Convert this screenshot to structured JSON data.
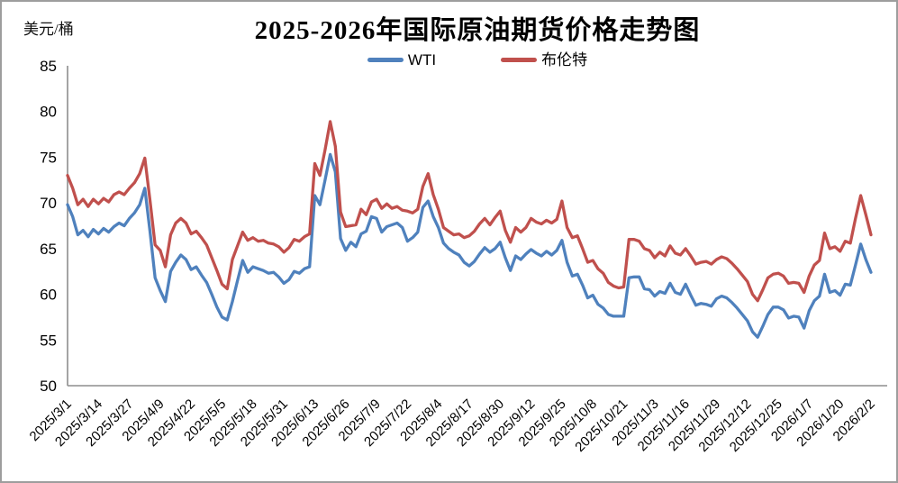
{
  "header": {
    "title": "2025-2026年国际原油期货价格走势图",
    "unit_label": "美元/桶"
  },
  "legend": [
    {
      "label": "WTI",
      "color": "#4F81BD"
    },
    {
      "label": "布伦特",
      "color": "#C0504D"
    }
  ],
  "chart_data": {
    "type": "line",
    "title": "2025-2026年国际原油期货价格走势图",
    "xlabel": "",
    "ylabel": "美元/桶",
    "ylim": [
      50,
      85
    ],
    "yticks": [
      50,
      55,
      60,
      65,
      70,
      75,
      80,
      85
    ],
    "grid": false,
    "legend_position": "top-center",
    "axis_color": "#8e8e8e",
    "x_tick_labels": [
      "2025/3/1",
      "2025/3/14",
      "2025/3/27",
      "2025/4/9",
      "2025/4/22",
      "2025/5/5",
      "2025/5/18",
      "2025/5/31",
      "2025/6/13",
      "2025/6/26",
      "2025/7/9",
      "2025/7/22",
      "2025/8/4",
      "2025/8/17",
      "2025/8/30",
      "2025/9/12",
      "2025/9/25",
      "2025/10/8",
      "2025/10/21",
      "2025/11/3",
      "2025/11/16",
      "2025/11/29",
      "2025/12/12",
      "2025/12/25",
      "2026/1/7",
      "2026/1/20",
      "2026/2/2"
    ],
    "points_per_tick_interval": 6,
    "series": [
      {
        "name": "WTI",
        "color": "#4F81BD",
        "values": [
          69.8,
          68.5,
          66.5,
          67.0,
          66.3,
          67.1,
          66.6,
          67.2,
          66.8,
          67.4,
          67.8,
          67.5,
          68.3,
          68.9,
          69.8,
          71.6,
          66.9,
          61.8,
          60.4,
          59.2,
          62.5,
          63.5,
          64.3,
          63.8,
          62.7,
          63.0,
          62.1,
          61.3,
          60.0,
          58.6,
          57.5,
          57.2,
          59.2,
          61.5,
          63.7,
          62.4,
          63.0,
          62.8,
          62.6,
          62.3,
          62.4,
          61.9,
          61.2,
          61.6,
          62.5,
          62.3,
          62.8,
          63.0,
          70.8,
          69.8,
          72.5,
          75.3,
          73.4,
          66.1,
          64.8,
          65.7,
          65.2,
          66.6,
          66.9,
          68.5,
          68.3,
          66.8,
          67.4,
          67.6,
          67.8,
          67.3,
          65.8,
          66.2,
          66.8,
          69.5,
          70.2,
          68.5,
          67.3,
          65.6,
          65.0,
          64.6,
          64.3,
          63.5,
          63.1,
          63.6,
          64.4,
          65.1,
          64.6,
          65.0,
          65.7,
          64.0,
          62.6,
          64.2,
          63.8,
          64.4,
          64.9,
          64.5,
          64.2,
          64.7,
          64.3,
          64.8,
          65.9,
          63.5,
          62.0,
          62.2,
          61.0,
          59.6,
          59.9,
          58.9,
          58.5,
          57.8,
          57.6,
          57.6,
          57.6,
          61.8,
          61.9,
          61.9,
          60.6,
          60.5,
          59.8,
          60.3,
          60.1,
          61.2,
          60.2,
          60.0,
          61.1,
          59.9,
          58.8,
          59.0,
          58.9,
          58.7,
          59.5,
          59.8,
          59.6,
          59.1,
          58.5,
          57.8,
          57.1,
          55.9,
          55.3,
          56.5,
          57.8,
          58.6,
          58.6,
          58.3,
          57.4,
          57.6,
          57.5,
          56.3,
          58.2,
          59.3,
          59.8,
          62.2,
          60.2,
          60.4,
          59.9,
          61.1,
          61.0,
          63.2,
          65.5,
          63.8,
          62.4
        ]
      },
      {
        "name": "布伦特",
        "color": "#C0504D",
        "values": [
          73.0,
          71.6,
          69.8,
          70.4,
          69.6,
          70.4,
          69.9,
          70.5,
          70.1,
          70.9,
          71.2,
          70.9,
          71.6,
          72.2,
          73.2,
          74.9,
          70.3,
          65.4,
          64.8,
          63.0,
          66.5,
          67.8,
          68.3,
          67.8,
          66.6,
          66.9,
          66.2,
          65.4,
          64.0,
          62.6,
          61.1,
          60.6,
          63.8,
          65.3,
          66.8,
          65.9,
          66.2,
          65.8,
          65.9,
          65.6,
          65.5,
          65.2,
          64.6,
          65.1,
          66.0,
          65.8,
          66.3,
          66.6,
          74.3,
          73.0,
          75.8,
          78.9,
          76.2,
          69.0,
          67.4,
          67.5,
          67.6,
          69.3,
          68.7,
          70.1,
          70.4,
          69.4,
          69.9,
          69.4,
          69.6,
          69.2,
          69.1,
          68.9,
          69.3,
          71.8,
          73.2,
          70.9,
          69.3,
          67.3,
          66.9,
          66.5,
          66.6,
          66.2,
          66.4,
          66.9,
          67.7,
          68.3,
          67.6,
          68.4,
          69.1,
          67.0,
          65.7,
          67.3,
          66.8,
          67.3,
          68.3,
          67.9,
          67.7,
          68.1,
          67.8,
          68.2,
          70.2,
          67.3,
          66.2,
          66.4,
          65.0,
          63.5,
          63.7,
          62.8,
          62.3,
          61.3,
          60.9,
          60.7,
          60.8,
          66.0,
          66.0,
          65.8,
          65.0,
          64.8,
          64.0,
          64.6,
          64.2,
          65.3,
          64.5,
          64.3,
          65.0,
          64.2,
          63.3,
          63.5,
          63.6,
          63.3,
          63.8,
          64.1,
          63.9,
          63.4,
          62.8,
          62.1,
          61.4,
          60.0,
          59.3,
          60.5,
          61.8,
          62.2,
          62.3,
          62.0,
          61.2,
          61.3,
          61.2,
          60.2,
          62.0,
          63.2,
          63.7,
          66.7,
          65.0,
          65.2,
          64.7,
          65.8,
          65.6,
          68.3,
          70.8,
          68.7,
          66.5
        ]
      }
    ]
  }
}
